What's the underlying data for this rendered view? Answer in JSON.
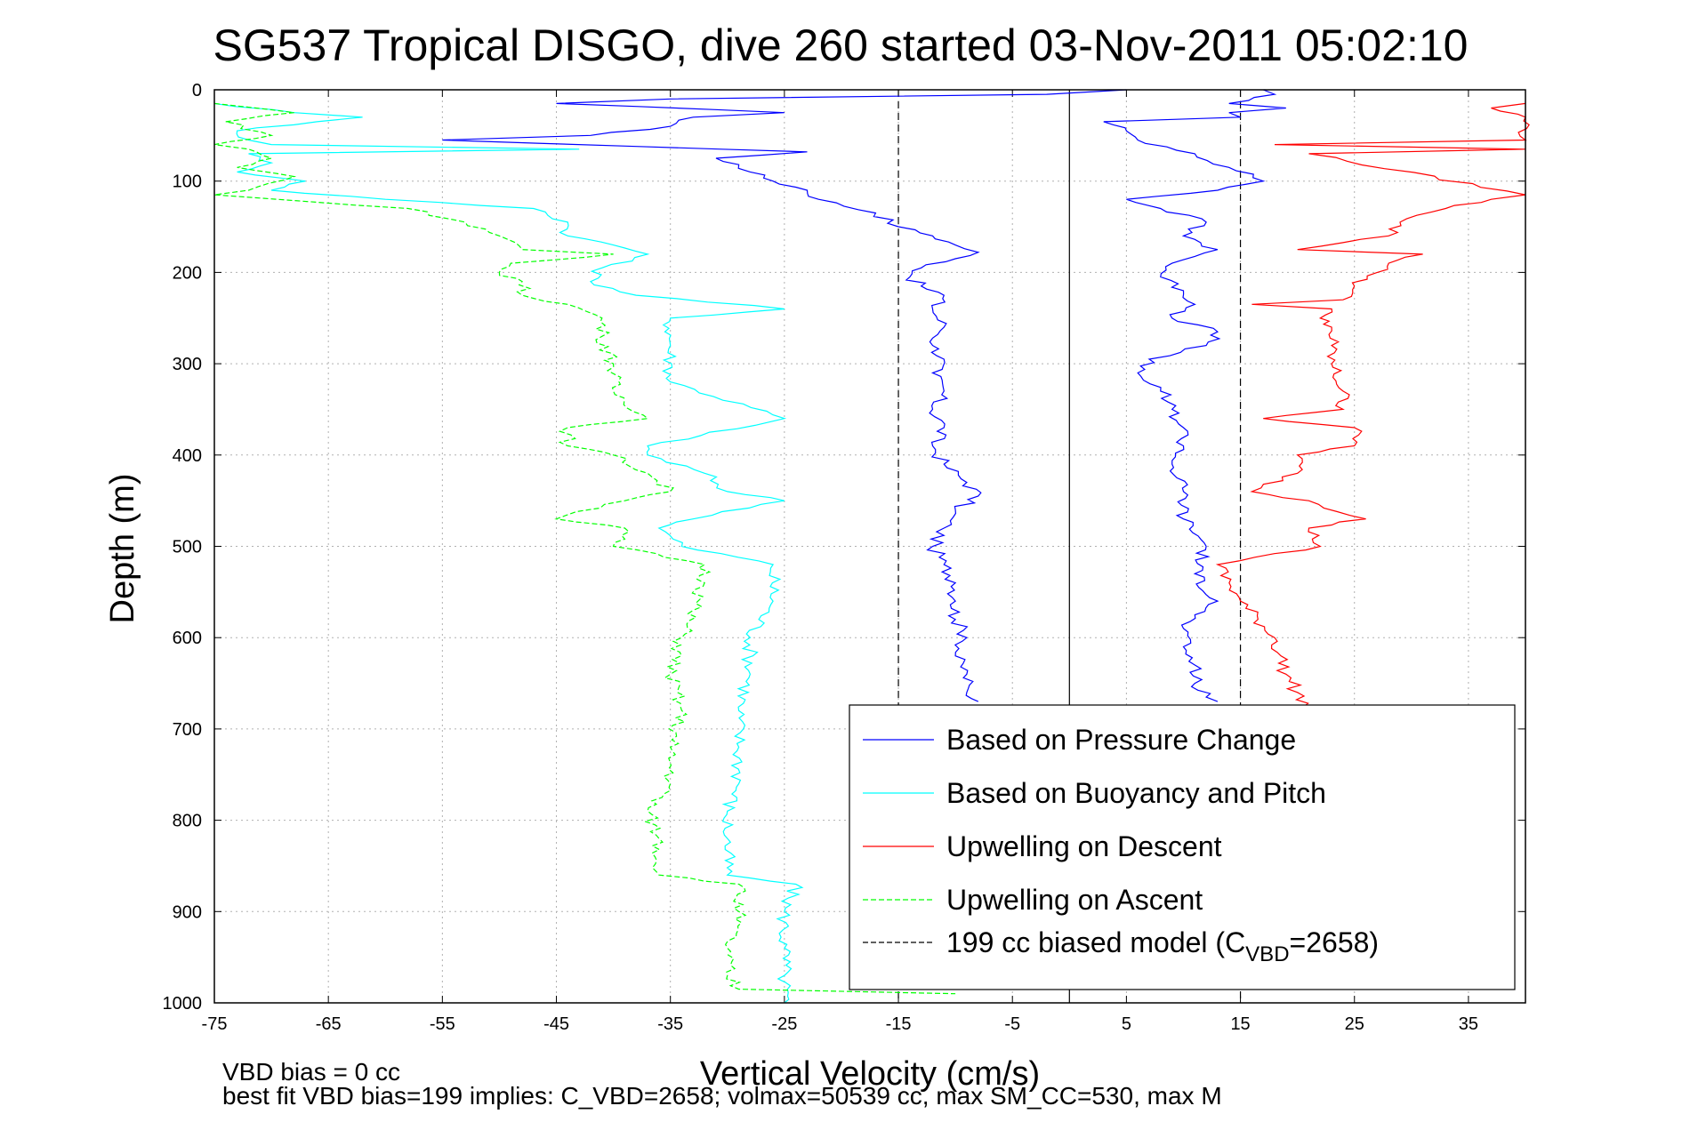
{
  "chart_data": {
    "type": "line",
    "title": "SG537 Tropical DISGO, dive 260 started 03-Nov-2011 05:02:10",
    "xlabel": "Vertical Velocity (cm/s)",
    "ylabel": "Depth (m)",
    "xlim": [
      -75,
      40
    ],
    "ylim": [
      1000,
      0
    ],
    "y_reversed": true,
    "grid": true,
    "legend_placement": "lower-right",
    "x_ticks": [
      "-75",
      "-65",
      "-55",
      "-45",
      "-35",
      "-25",
      "-15",
      "-5",
      "5",
      "15",
      "25",
      "35"
    ],
    "y_ticks": [
      "0",
      "100",
      "200",
      "300",
      "400",
      "500",
      "600",
      "700",
      "800",
      "900",
      "1000"
    ],
    "footnotes": [
      "VBD bias = 0 cc",
      "best fit VBD bias=199 implies: C_VBD=2658; volmax=50539 cc, max SM_CC=530, max M"
    ],
    "legend": [
      {
        "label": "Based on Pressure Change",
        "color": "#0000ff",
        "dash": false
      },
      {
        "label": "Based on Buoyancy and Pitch",
        "color": "#00ffff",
        "dash": false
      },
      {
        "label": "Upwelling on Descent",
        "color": "#ff0000",
        "dash": false
      },
      {
        "label": "Upwelling on Ascent",
        "color": "#00ff00",
        "dash": true
      },
      {
        "label_main": "199 cc biased model (C",
        "label_sub": "VBD",
        "label_tail": "=2658)",
        "color": "#000000",
        "dash": true
      }
    ],
    "reference_lines": [
      {
        "x": 0,
        "style": "solid",
        "color": "#000000"
      },
      {
        "x": -15,
        "style": "dashed",
        "color": "#000000"
      },
      {
        "x": 15,
        "style": "dashed",
        "color": "#000000"
      }
    ],
    "series": [
      {
        "name": "Based on Pressure Change",
        "color": "#0000ff",
        "descent": {
          "depth": [
            0,
            5,
            10,
            15,
            25,
            30,
            40,
            50,
            55,
            62,
            68,
            75,
            82,
            90,
            100,
            110,
            120,
            135,
            150,
            160,
            170,
            178,
            185,
            195,
            205,
            215,
            225,
            240,
            260,
            280,
            295,
            310,
            330,
            350,
            370,
            390,
            410,
            430,
            445,
            460,
            480,
            500,
            520,
            540,
            560,
            580,
            600,
            620,
            640,
            660,
            670
          ],
          "v": [
            5,
            -2,
            -35,
            -45,
            -25,
            -33,
            -35,
            -42,
            -55,
            -38,
            -23,
            -31,
            -29,
            -28,
            -26,
            -23,
            -22,
            -17,
            -15,
            -12,
            -10,
            -8,
            -10,
            -13,
            -14,
            -13,
            -11,
            -12,
            -11,
            -12,
            -11,
            -12,
            -11,
            -12,
            -11,
            -12,
            -11,
            -9,
            -8,
            -10,
            -11,
            -12,
            -11,
            -10,
            -10,
            -10,
            -9,
            -10,
            -9,
            -9,
            -8
          ]
        },
        "ascent": {
          "depth": [
            0,
            5,
            15,
            20,
            25,
            30,
            35,
            45,
            55,
            70,
            85,
            100,
            110,
            120,
            130,
            145,
            160,
            175,
            190,
            205,
            220,
            235,
            250,
            265,
            280,
            295,
            310,
            330,
            350,
            370,
            390,
            410,
            440,
            470,
            500,
            530,
            560,
            575,
            590,
            610,
            630,
            650,
            665,
            670
          ],
          "v": [
            17,
            18,
            14,
            19,
            14,
            15,
            3,
            5,
            6,
            11,
            14,
            17,
            13,
            5,
            8,
            12,
            10,
            13,
            9,
            8,
            10,
            11,
            9,
            13,
            12,
            7,
            6,
            8,
            9,
            10,
            10,
            9,
            10,
            10,
            12,
            11,
            13,
            11,
            10,
            10,
            11,
            11,
            12,
            13
          ]
        }
      },
      {
        "name": "Based on Buoyancy and Pitch",
        "color": "#00ffff",
        "depth": [
          15,
          25,
          30,
          35,
          45,
          55,
          60,
          65,
          70,
          80,
          90,
          100,
          110,
          120,
          130,
          145,
          160,
          170,
          180,
          195,
          210,
          225,
          240,
          250,
          280,
          320,
          360,
          390,
          400,
          420,
          440,
          450,
          470,
          480,
          500,
          520,
          560,
          600,
          640,
          680,
          720,
          760,
          790,
          820,
          860,
          870,
          900,
          940,
          970,
          1000
        ],
        "v": [
          -75,
          -68,
          -62,
          -66,
          -73,
          -72,
          -70,
          -43,
          -72,
          -70,
          -73,
          -67,
          -70,
          -60,
          -47,
          -44,
          -44,
          -40,
          -37,
          -41,
          -42,
          -38,
          -25,
          -35,
          -35,
          -35,
          -25,
          -37,
          -37,
          -32,
          -30,
          -25,
          -33,
          -36,
          -34,
          -26,
          -26,
          -28,
          -28,
          -29,
          -29,
          -29,
          -30,
          -30,
          -30,
          -24,
          -25,
          -25,
          -25,
          -25
        ]
      },
      {
        "name": "Upwelling on Descent",
        "color": "#ff0000",
        "depth": [
          15,
          20,
          30,
          55,
          60,
          65,
          70,
          115,
          120,
          130,
          145,
          160,
          175,
          180,
          190,
          200,
          215,
          230,
          235,
          240,
          250,
          260,
          280,
          300,
          330,
          350,
          360,
          370,
          390,
          400,
          420,
          440,
          450,
          470,
          480,
          500,
          520,
          560,
          600,
          640,
          660,
          680
        ],
        "v": [
          40,
          37,
          40,
          40,
          18,
          40,
          21,
          40,
          37,
          33,
          29,
          28,
          20,
          31,
          28,
          27,
          25,
          24,
          16,
          23,
          22,
          23,
          23,
          23,
          24,
          24,
          17,
          25,
          25,
          20,
          20,
          16,
          21,
          26,
          21,
          22,
          13,
          15,
          18,
          19,
          20,
          21
        ]
      },
      {
        "name": "Upwelling on Ascent",
        "color": "#00ff00",
        "depth": [
          15,
          25,
          35,
          50,
          60,
          65,
          75,
          85,
          95,
          110,
          115,
          130,
          145,
          160,
          175,
          180,
          190,
          200,
          210,
          225,
          235,
          250,
          270,
          300,
          330,
          360,
          370,
          390,
          400,
          420,
          440,
          450,
          470,
          480,
          500,
          520,
          540,
          570,
          600,
          640,
          680,
          720,
          760,
          790,
          820,
          860,
          870,
          900,
          940,
          970,
          985,
          990
        ],
        "v": [
          -75,
          -68,
          -74,
          -70,
          -75,
          -72,
          -70,
          -73,
          -68,
          -72,
          -75,
          -58,
          -53,
          -50,
          -48,
          -40,
          -49,
          -50,
          -48,
          -48,
          -44,
          -41,
          -41,
          -40,
          -40,
          -37,
          -44,
          -44,
          -40,
          -37,
          -35,
          -39,
          -45,
          -39,
          -40,
          -32,
          -32,
          -33,
          -34,
          -35,
          -34,
          -35,
          -35,
          -37,
          -36,
          -36,
          -29,
          -29,
          -30,
          -30,
          -29,
          -10
        ]
      }
    ]
  }
}
